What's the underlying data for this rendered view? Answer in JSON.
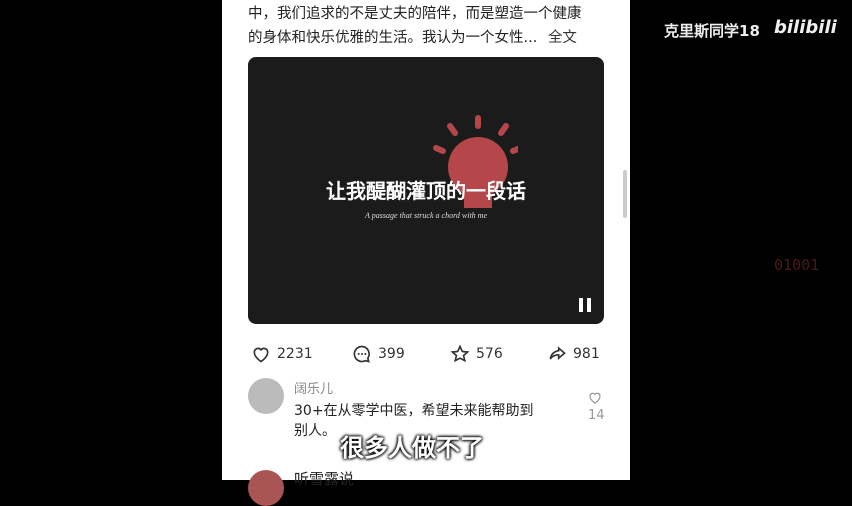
{
  "post": {
    "lines": [
      "中，我们追求的不是丈夫的陪伴，而是塑造一个健康",
      "的身体和快乐优雅的生活。我认为一个女性..."
    ],
    "more": "全文"
  },
  "video": {
    "title": "让我醍醐灌顶的一段话",
    "subtitle": "A passage that struck a chord with me"
  },
  "stats": {
    "likes": 2231,
    "comments": 399,
    "favorites": 576,
    "shares": 981
  },
  "comments": [
    {
      "user": "阔乐儿",
      "text_lines": [
        "30+在从零学中医，希望未来能帮助到",
        "别人。"
      ],
      "likes": 14
    },
    {
      "user": "听雪露说"
    }
  ],
  "caption": "很多人做不了",
  "watermark": {
    "author": "克里斯同学18",
    "logo": "bilibili",
    "code": "01001"
  }
}
